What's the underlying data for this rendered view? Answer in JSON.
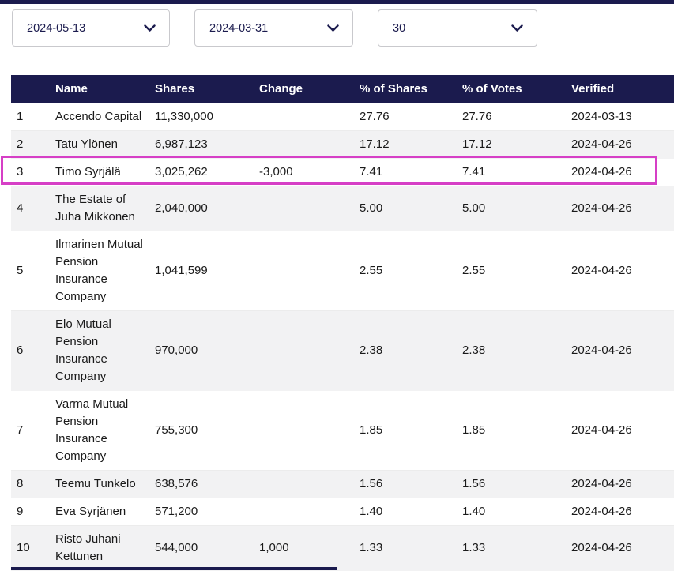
{
  "colors": {
    "navy": "#1b1b4e",
    "highlight": "#d63fc6",
    "stripe": "#f2f2f3"
  },
  "filters": [
    {
      "value": "2024-05-13"
    },
    {
      "value": "2024-03-31"
    },
    {
      "value": "30"
    }
  ],
  "table": {
    "columns": [
      "",
      "Name",
      "Shares",
      "Change",
      "% of Shares",
      "% of Votes",
      "Verified"
    ],
    "highlighted_rank": "3",
    "rows": [
      {
        "rank": "1",
        "name": "Accendo Capital",
        "shares": "11,330,000",
        "change": "",
        "pct_shares": "27.76",
        "pct_votes": "27.76",
        "verified": "2024-03-13"
      },
      {
        "rank": "2",
        "name": "Tatu Ylönen",
        "shares": "6,987,123",
        "change": "",
        "pct_shares": "17.12",
        "pct_votes": "17.12",
        "verified": "2024-04-26"
      },
      {
        "rank": "3",
        "name": "Timo Syrjälä",
        "shares": "3,025,262",
        "change": "-3,000",
        "pct_shares": "7.41",
        "pct_votes": "7.41",
        "verified": "2024-04-26"
      },
      {
        "rank": "4",
        "name": "The Estate of Juha Mikkonen",
        "shares": "2,040,000",
        "change": "",
        "pct_shares": "5.00",
        "pct_votes": "5.00",
        "verified": "2024-04-26"
      },
      {
        "rank": "5",
        "name": "Ilmarinen Mutual Pension Insurance Company",
        "shares": "1,041,599",
        "change": "",
        "pct_shares": "2.55",
        "pct_votes": "2.55",
        "verified": "2024-04-26"
      },
      {
        "rank": "6",
        "name": "Elo Mutual Pension Insurance Company",
        "shares": "970,000",
        "change": "",
        "pct_shares": "2.38",
        "pct_votes": "2.38",
        "verified": "2024-04-26"
      },
      {
        "rank": "7",
        "name": "Varma Mutual Pension Insurance Company",
        "shares": "755,300",
        "change": "",
        "pct_shares": "1.85",
        "pct_votes": "1.85",
        "verified": "2024-04-26"
      },
      {
        "rank": "8",
        "name": "Teemu Tunkelo",
        "shares": "638,576",
        "change": "",
        "pct_shares": "1.56",
        "pct_votes": "1.56",
        "verified": "2024-04-26"
      },
      {
        "rank": "9",
        "name": "Eva Syrjänen",
        "shares": "571,200",
        "change": "",
        "pct_shares": "1.40",
        "pct_votes": "1.40",
        "verified": "2024-04-26"
      },
      {
        "rank": "10",
        "name": "Risto Juhani Kettunen",
        "shares": "544,000",
        "change": "1,000",
        "pct_shares": "1.33",
        "pct_votes": "1.33",
        "verified": "2024-04-26"
      }
    ]
  }
}
